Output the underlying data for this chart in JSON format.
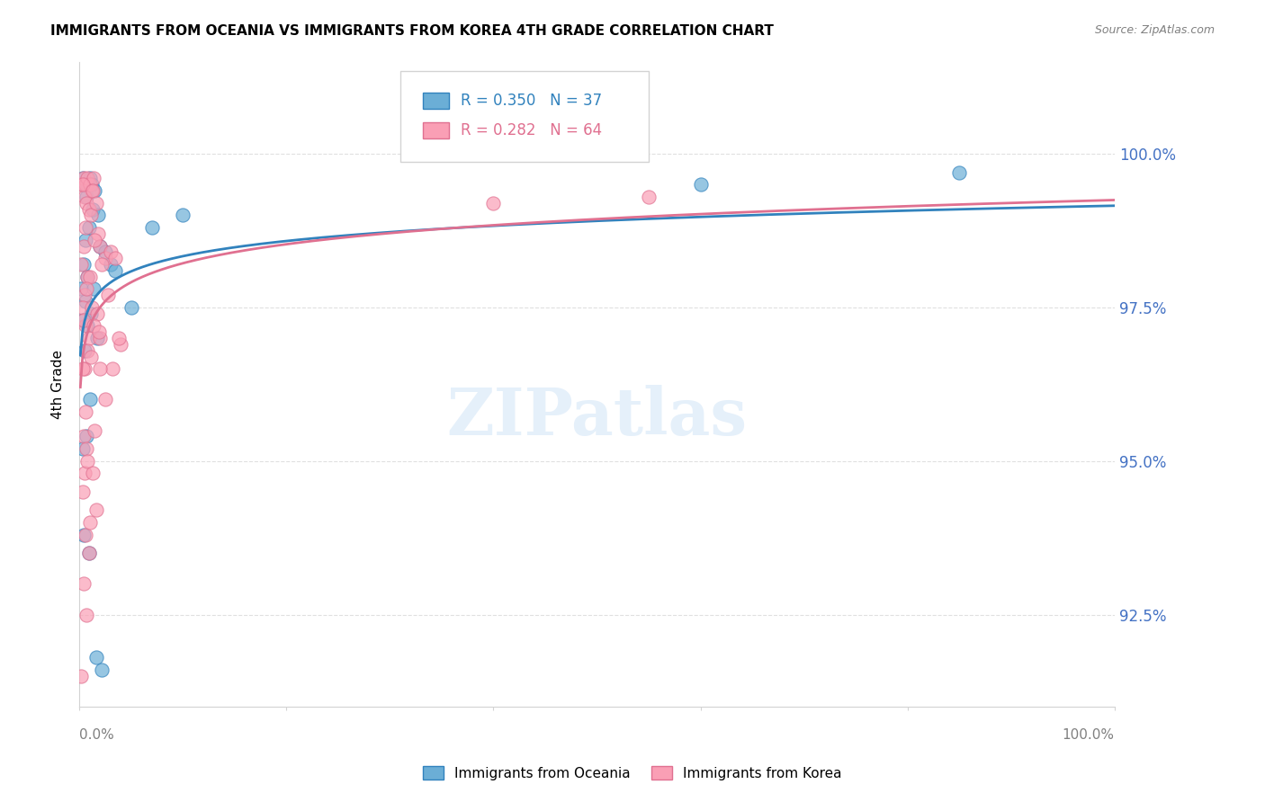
{
  "title": "IMMIGRANTS FROM OCEANIA VS IMMIGRANTS FROM KOREA 4TH GRADE CORRELATION CHART",
  "source": "Source: ZipAtlas.com",
  "ylabel": "4th Grade",
  "xlim": [
    0.0,
    100.0
  ],
  "ylim": [
    91.0,
    101.5
  ],
  "legend_r1": "R = 0.350",
  "legend_n1": "N = 37",
  "legend_r2": "R = 0.282",
  "legend_n2": "N = 64",
  "legend_label1": "Immigrants from Oceania",
  "legend_label2": "Immigrants from Korea",
  "color_oceania": "#6baed6",
  "color_korea": "#fa9fb5",
  "color_oceania_line": "#3182bd",
  "color_korea_line": "#e07090",
  "blue_x": [
    0.5,
    0.3,
    0.8,
    1.0,
    1.2,
    0.7,
    1.5,
    1.3,
    0.9,
    0.6,
    0.4,
    1.8,
    2.0,
    2.5,
    3.0,
    0.2,
    0.6,
    1.1,
    0.8,
    1.4,
    0.3,
    0.5,
    1.7,
    3.5,
    5.0,
    7.0,
    10.0,
    60.0,
    0.4,
    0.9,
    1.6,
    2.2,
    0.7,
    0.3,
    1.0,
    0.8,
    85.0
  ],
  "blue_y": [
    99.5,
    99.6,
    99.5,
    99.6,
    99.5,
    99.3,
    99.4,
    99.1,
    98.8,
    98.6,
    98.2,
    99.0,
    98.5,
    98.4,
    98.2,
    97.8,
    97.6,
    97.4,
    97.2,
    97.8,
    97.3,
    96.8,
    97.0,
    98.1,
    97.5,
    98.8,
    99.0,
    99.5,
    93.8,
    93.5,
    91.8,
    91.6,
    95.4,
    95.2,
    96.0,
    98.0,
    99.7
  ],
  "pink_x": [
    0.2,
    0.4,
    0.6,
    0.8,
    1.0,
    1.2,
    1.4,
    0.5,
    0.3,
    0.7,
    0.9,
    1.1,
    0.6,
    0.4,
    1.3,
    1.6,
    1.8,
    2.0,
    2.5,
    3.0,
    0.2,
    0.8,
    0.5,
    1.5,
    2.2,
    0.3,
    1.0,
    0.7,
    3.5,
    0.6,
    1.2,
    0.4,
    0.9,
    2.8,
    1.7,
    4.0,
    0.5,
    1.4,
    0.8,
    2.0,
    1.1,
    0.3,
    0.6,
    1.9,
    0.4,
    3.2,
    0.7,
    0.5,
    40.0,
    0.3,
    0.8,
    1.3,
    2.5,
    0.6,
    0.9,
    1.5,
    0.4,
    3.8,
    55.0,
    0.7,
    1.6,
    0.2,
    1.0,
    2.0
  ],
  "pink_y": [
    99.5,
    99.6,
    99.5,
    99.6,
    99.5,
    99.4,
    99.6,
    99.3,
    99.5,
    99.2,
    99.1,
    99.0,
    98.8,
    98.5,
    99.4,
    99.2,
    98.7,
    98.5,
    98.3,
    98.4,
    98.2,
    98.0,
    97.7,
    98.6,
    98.2,
    97.5,
    98.0,
    97.8,
    98.3,
    97.2,
    97.5,
    97.3,
    97.0,
    97.7,
    97.4,
    96.9,
    96.5,
    97.2,
    96.8,
    97.0,
    96.7,
    96.5,
    95.8,
    97.1,
    95.4,
    96.5,
    95.2,
    94.8,
    99.2,
    94.5,
    95.0,
    94.8,
    96.0,
    93.8,
    93.5,
    95.5,
    93.0,
    97.0,
    99.3,
    92.5,
    94.2,
    91.5,
    94.0,
    96.5
  ]
}
